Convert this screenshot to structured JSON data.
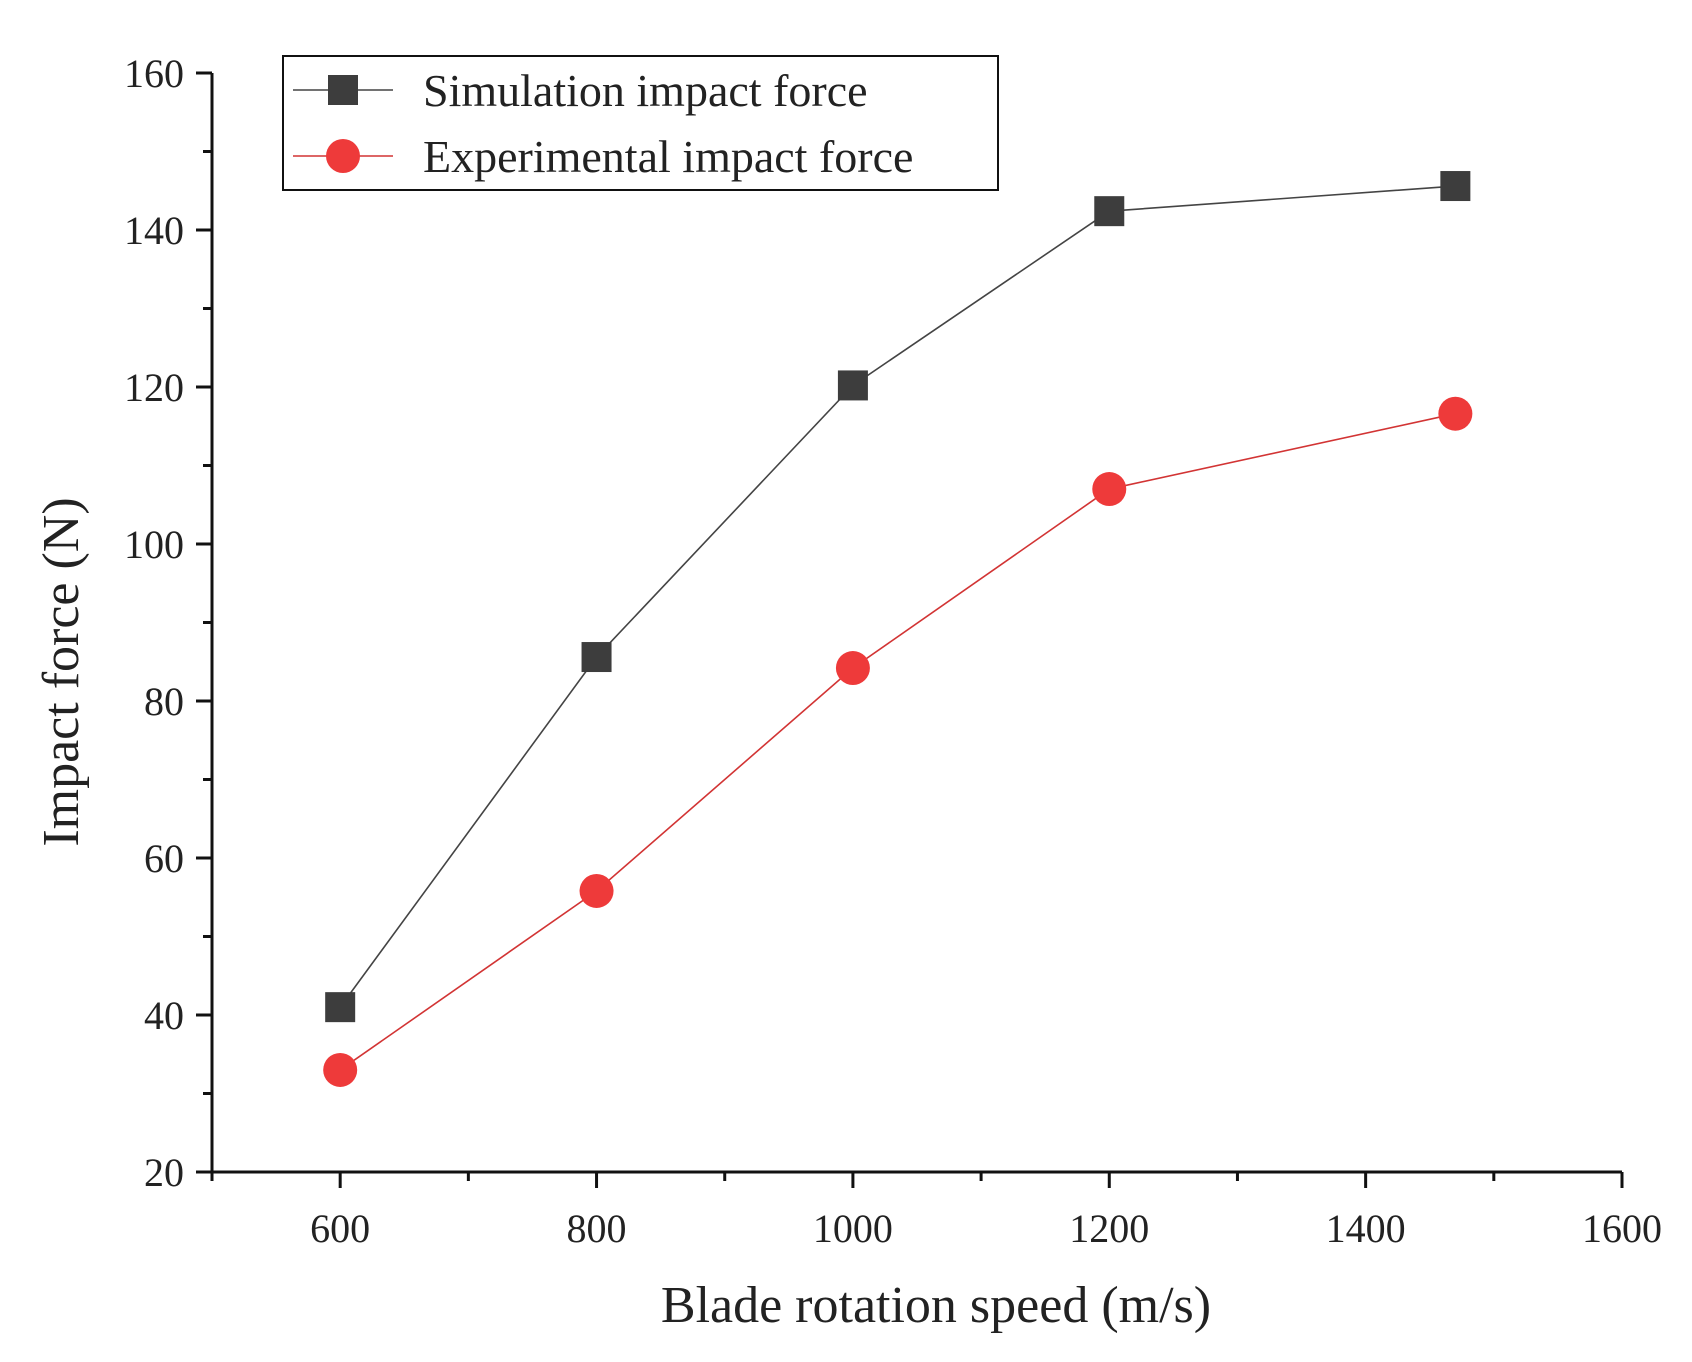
{
  "chart_data": {
    "type": "line",
    "xlabel": "Blade   rotation  speed (m/s)",
    "ylabel": "Impact force (N)",
    "xlim": [
      500,
      1600
    ],
    "ylim": [
      20,
      160
    ],
    "x_ticks": [
      600,
      800,
      1000,
      1200,
      1400,
      1600
    ],
    "x_minor_ticks": [
      500,
      700,
      900,
      1100,
      1300,
      1500
    ],
    "y_ticks": [
      20,
      40,
      60,
      80,
      100,
      120,
      140,
      160
    ],
    "y_minor_ticks": [
      30,
      50,
      70,
      90,
      110,
      130,
      150
    ],
    "grid": false,
    "legend_position": "top-left",
    "series": [
      {
        "name": "Simulation impact force",
        "marker": "square",
        "color": "#3d3d3d",
        "x": [
          600,
          800,
          1000,
          1200,
          1470
        ],
        "values": [
          41,
          85.6,
          120.2,
          142.4,
          145.6
        ]
      },
      {
        "name": "Experimental impact force",
        "marker": "circle",
        "color": "#ee3a3a",
        "x": [
          600,
          800,
          1000,
          1200,
          1470
        ],
        "values": [
          33,
          55.8,
          84.2,
          107,
          116.6
        ]
      }
    ]
  }
}
